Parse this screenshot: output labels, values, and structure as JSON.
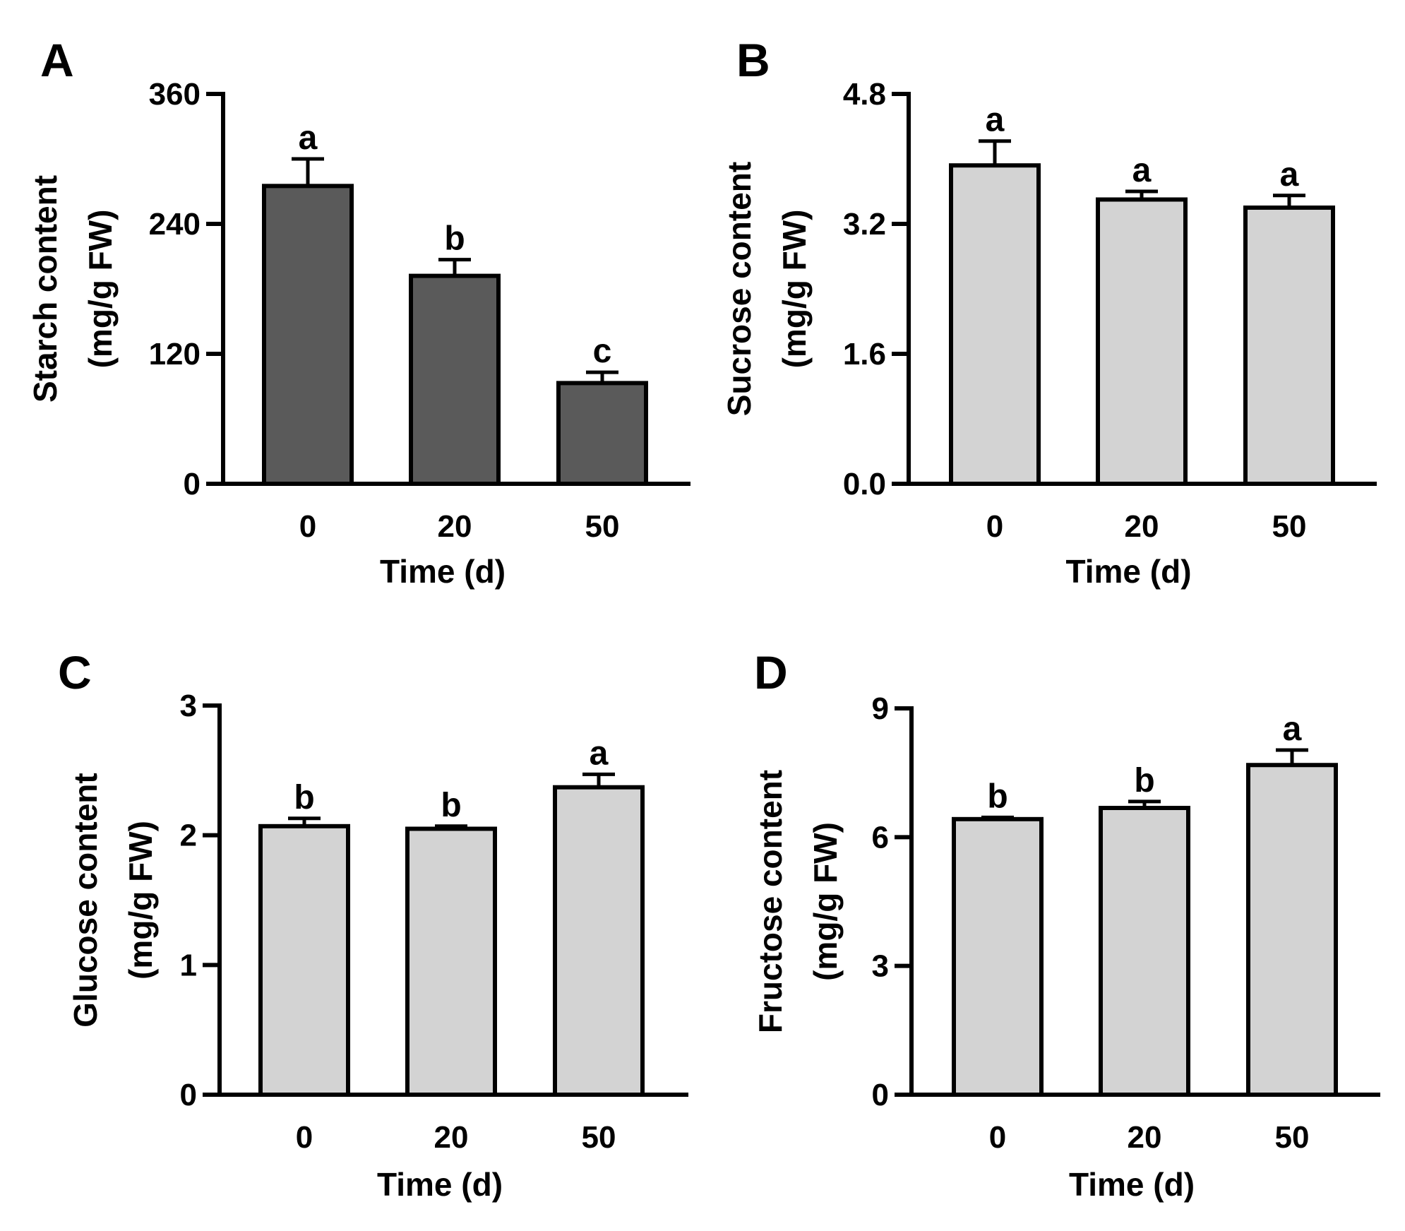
{
  "chart_data": [
    {
      "panel": "A",
      "type": "bar",
      "categories": [
        "0",
        "20",
        "50"
      ],
      "values": [
        275,
        192,
        93
      ],
      "errors": [
        25,
        15,
        10
      ],
      "significance": [
        "a",
        "b",
        "c"
      ],
      "ylim": [
        0,
        360
      ],
      "yticks": [
        "0",
        "120",
        "240",
        "360"
      ],
      "ytick_values": [
        0,
        120,
        240,
        360
      ],
      "xlabel": "Time (d)",
      "ylabel_line1": "Starch content",
      "ylabel_line2": "(mg/g FW)",
      "bar_color": "#5a5a5a"
    },
    {
      "panel": "B",
      "type": "bar",
      "categories": [
        "0",
        "20",
        "50"
      ],
      "values": [
        3.92,
        3.5,
        3.4
      ],
      "errors": [
        0.3,
        0.1,
        0.15
      ],
      "significance": [
        "a",
        "a",
        "a"
      ],
      "ylim": [
        0,
        4.8
      ],
      "yticks": [
        "0.0",
        "1.6",
        "3.2",
        "4.8"
      ],
      "ytick_values": [
        0,
        1.6,
        3.2,
        4.8
      ],
      "xlabel": "Time (d)",
      "ylabel_line1": "Sucrose content",
      "ylabel_line2": "(mg/g FW)",
      "bar_color": "#d3d3d3"
    },
    {
      "panel": "C",
      "type": "bar",
      "categories": [
        "0",
        "20",
        "50"
      ],
      "values": [
        2.07,
        2.05,
        2.37
      ],
      "errors": [
        0.06,
        0.02,
        0.1
      ],
      "significance": [
        "b",
        "b",
        "a"
      ],
      "ylim": [
        0,
        3
      ],
      "yticks": [
        "0",
        "1",
        "2",
        "3"
      ],
      "ytick_values": [
        0,
        1,
        2,
        3
      ],
      "xlabel": "Time (d)",
      "ylabel_line1": "Glucose content",
      "ylabel_line2": "(mg/g FW)",
      "bar_color": "#d3d3d3"
    },
    {
      "panel": "D",
      "type": "bar",
      "categories": [
        "0",
        "20",
        "50"
      ],
      "values": [
        6.42,
        6.68,
        7.68
      ],
      "errors": [
        0.04,
        0.15,
        0.35
      ],
      "significance": [
        "b",
        "b",
        "a"
      ],
      "ylim": [
        0,
        9
      ],
      "yticks": [
        "0",
        "3",
        "6",
        "9"
      ],
      "ytick_values": [
        0,
        3,
        6,
        9
      ],
      "xlabel": "Time (d)",
      "ylabel_line1": "Fructose content",
      "ylabel_line2": "(mg/g FW)",
      "bar_color": "#d3d3d3"
    }
  ]
}
